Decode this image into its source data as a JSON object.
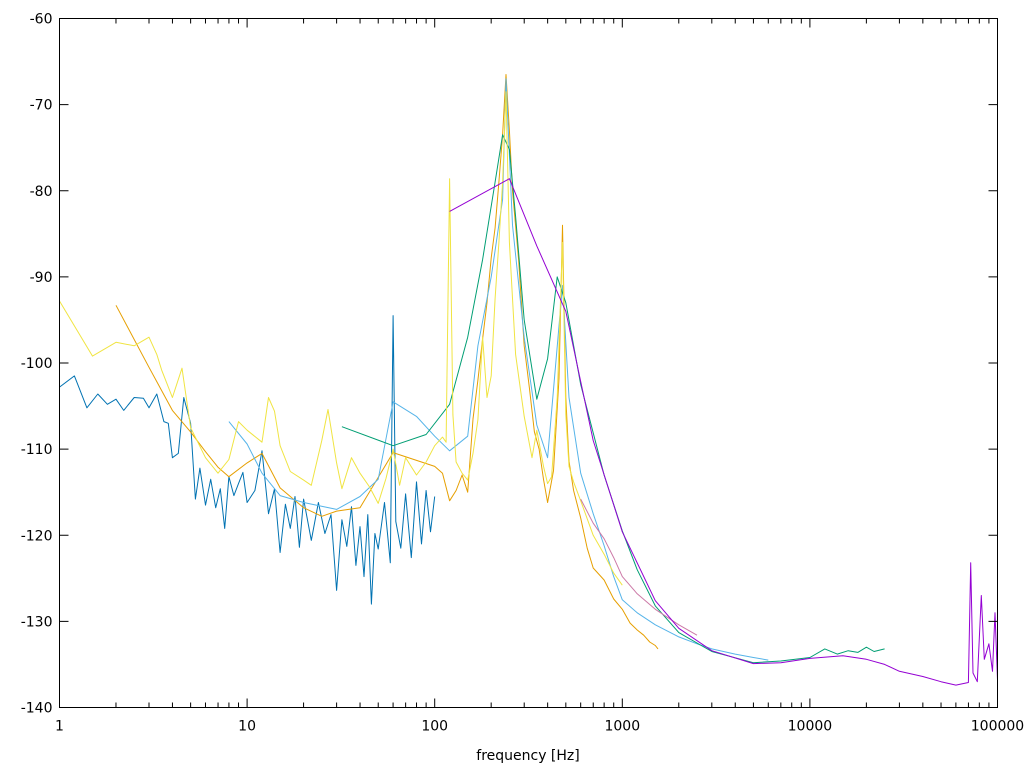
{
  "chart_data": {
    "type": "line",
    "title": "",
    "xlabel": "frequency [Hz]",
    "ylabel": "",
    "x_scale": "log",
    "xlim": [
      1,
      100000
    ],
    "ylim": [
      -140,
      -60
    ],
    "grid": false,
    "legend": "none",
    "x_ticks": [
      {
        "value": 1,
        "label": "1"
      },
      {
        "value": 10,
        "label": "10"
      },
      {
        "value": 100,
        "label": "100"
      },
      {
        "value": 1000,
        "label": "1000"
      },
      {
        "value": 10000,
        "label": "10000"
      },
      {
        "value": 100000,
        "label": "100000"
      }
    ],
    "y_ticks": [
      {
        "value": -60,
        "label": "-60"
      },
      {
        "value": -70,
        "label": "-70"
      },
      {
        "value": -80,
        "label": "-80"
      },
      {
        "value": -90,
        "label": "-90"
      },
      {
        "value": -100,
        "label": "-100"
      },
      {
        "value": -110,
        "label": "-110"
      },
      {
        "value": -120,
        "label": "-120"
      },
      {
        "value": -130,
        "label": "-130"
      },
      {
        "value": -140,
        "label": "-140"
      }
    ],
    "series": [
      {
        "color": "#0072b2",
        "points": [
          [
            1,
            -102.8
          ],
          [
            1.2,
            -101.5
          ],
          [
            1.4,
            -105.2
          ],
          [
            1.6,
            -103.6
          ],
          [
            1.8,
            -104.8
          ],
          [
            2,
            -104.2
          ],
          [
            2.2,
            -105.5
          ],
          [
            2.5,
            -104
          ],
          [
            2.8,
            -104.1
          ],
          [
            3,
            -105.2
          ],
          [
            3.3,
            -103.6
          ],
          [
            3.6,
            -106.8
          ],
          [
            3.8,
            -107
          ],
          [
            4,
            -111
          ],
          [
            4.3,
            -110.5
          ],
          [
            4.6,
            -104
          ],
          [
            5,
            -107
          ],
          [
            5.3,
            -115.8
          ],
          [
            5.6,
            -112.2
          ],
          [
            6,
            -116.5
          ],
          [
            6.4,
            -113.5
          ],
          [
            6.8,
            -116.8
          ],
          [
            7.2,
            -114.6
          ],
          [
            7.6,
            -119.2
          ],
          [
            8,
            -113.2
          ],
          [
            8.5,
            -115.4
          ],
          [
            9,
            -114
          ],
          [
            9.5,
            -112.7
          ],
          [
            10,
            -116.2
          ],
          [
            11,
            -114.8
          ],
          [
            12,
            -110.2
          ],
          [
            13,
            -117.5
          ],
          [
            14,
            -114.6
          ],
          [
            15,
            -122
          ],
          [
            16,
            -116.4
          ],
          [
            17,
            -119.2
          ],
          [
            18,
            -115.5
          ],
          [
            19,
            -121.4
          ],
          [
            20,
            -115.8
          ],
          [
            22,
            -120.6
          ],
          [
            24,
            -116.2
          ],
          [
            26,
            -119.8
          ],
          [
            28,
            -117.6
          ],
          [
            30,
            -126.4
          ],
          [
            32,
            -118.2
          ],
          [
            34,
            -121.3
          ],
          [
            36,
            -116.7
          ],
          [
            38,
            -123.5
          ],
          [
            40,
            -119
          ],
          [
            42,
            -124.8
          ],
          [
            44,
            -117.6
          ],
          [
            46,
            -128
          ],
          [
            48,
            -119.8
          ],
          [
            50,
            -121.6
          ],
          [
            54,
            -116.2
          ],
          [
            58,
            -123.2
          ],
          [
            60,
            -94.5
          ],
          [
            62,
            -118.4
          ],
          [
            66,
            -121.5
          ],
          [
            70,
            -115.2
          ],
          [
            75,
            -122.6
          ],
          [
            80,
            -113.8
          ],
          [
            85,
            -121
          ],
          [
            90,
            -114.8
          ],
          [
            95,
            -119.6
          ],
          [
            100,
            -115.5
          ]
        ]
      },
      {
        "color": "#e69f00",
        "points": [
          [
            2,
            -93.3
          ],
          [
            3,
            -100.5
          ],
          [
            4,
            -105.5
          ],
          [
            5,
            -108
          ],
          [
            6,
            -110.3
          ],
          [
            7,
            -112.1
          ],
          [
            8,
            -113.2
          ],
          [
            10,
            -111.6
          ],
          [
            12,
            -110.5
          ],
          [
            15,
            -114.5
          ],
          [
            20,
            -116.8
          ],
          [
            25,
            -117.8
          ],
          [
            30,
            -117.2
          ],
          [
            40,
            -116.8
          ],
          [
            60,
            -110.4
          ],
          [
            100,
            -112
          ],
          [
            110,
            -112.8
          ],
          [
            120,
            -116
          ],
          [
            130,
            -114.8
          ],
          [
            140,
            -113
          ],
          [
            150,
            -115
          ],
          [
            160,
            -106.5
          ],
          [
            170,
            -102
          ],
          [
            180,
            -97.2
          ],
          [
            190,
            -93
          ],
          [
            200,
            -87.8
          ],
          [
            210,
            -84.3
          ],
          [
            220,
            -79
          ],
          [
            230,
            -73.5
          ],
          [
            240,
            -66.5
          ],
          [
            250,
            -73
          ],
          [
            260,
            -80
          ],
          [
            280,
            -88
          ],
          [
            300,
            -98
          ],
          [
            320,
            -103
          ],
          [
            340,
            -108
          ],
          [
            360,
            -110
          ],
          [
            380,
            -113.5
          ],
          [
            400,
            -116.2
          ],
          [
            430,
            -112.5
          ],
          [
            460,
            -101.8
          ],
          [
            480,
            -84
          ],
          [
            500,
            -104
          ],
          [
            520,
            -111.4
          ],
          [
            550,
            -114.8
          ],
          [
            600,
            -118
          ],
          [
            650,
            -121.5
          ],
          [
            700,
            -123.8
          ],
          [
            800,
            -125.2
          ],
          [
            900,
            -127.4
          ],
          [
            1000,
            -128.6
          ],
          [
            1100,
            -130.2
          ],
          [
            1200,
            -131
          ],
          [
            1300,
            -131.6
          ],
          [
            1400,
            -132.4
          ],
          [
            1500,
            -132.8
          ],
          [
            1550,
            -133.2
          ]
        ]
      },
      {
        "color": "#56b4e9",
        "points": [
          [
            8,
            -106.8
          ],
          [
            10,
            -109.4
          ],
          [
            12,
            -112.8
          ],
          [
            15,
            -115.4
          ],
          [
            20,
            -116.2
          ],
          [
            30,
            -117
          ],
          [
            40,
            -115.5
          ],
          [
            50,
            -113.5
          ],
          [
            60,
            -104.5
          ],
          [
            80,
            -106.2
          ],
          [
            100,
            -108.5
          ],
          [
            120,
            -110.2
          ],
          [
            150,
            -108.5
          ],
          [
            170,
            -98
          ],
          [
            200,
            -90
          ],
          [
            230,
            -81
          ],
          [
            240,
            -67
          ],
          [
            260,
            -84
          ],
          [
            300,
            -97
          ],
          [
            350,
            -107.2
          ],
          [
            400,
            -111
          ],
          [
            480,
            -91
          ],
          [
            520,
            -104
          ],
          [
            600,
            -112.8
          ],
          [
            700,
            -117.5
          ],
          [
            800,
            -121.2
          ],
          [
            900,
            -124.8
          ],
          [
            1000,
            -127.5
          ],
          [
            1200,
            -129
          ],
          [
            1500,
            -130.4
          ],
          [
            2000,
            -131.8
          ],
          [
            2500,
            -132.6
          ],
          [
            3000,
            -133.2
          ],
          [
            4000,
            -133.8
          ],
          [
            5000,
            -134.2
          ],
          [
            6000,
            -134.5
          ]
        ]
      },
      {
        "color": "#009e73",
        "points": [
          [
            32,
            -107.4
          ],
          [
            60,
            -109.6
          ],
          [
            90,
            -108.3
          ],
          [
            120,
            -104.8
          ],
          [
            150,
            -97
          ],
          [
            180,
            -88
          ],
          [
            210,
            -79
          ],
          [
            230,
            -73.5
          ],
          [
            250,
            -75.2
          ],
          [
            270,
            -83
          ],
          [
            300,
            -95
          ],
          [
            350,
            -104.2
          ],
          [
            400,
            -99.5
          ],
          [
            450,
            -90
          ],
          [
            500,
            -93
          ],
          [
            600,
            -102.5
          ],
          [
            800,
            -113
          ],
          [
            1000,
            -119.5
          ],
          [
            1200,
            -124
          ],
          [
            1500,
            -128.2
          ],
          [
            2000,
            -131.3
          ],
          [
            3000,
            -133.5
          ],
          [
            5000,
            -134.8
          ],
          [
            7000,
            -134.6
          ],
          [
            10000,
            -134.2
          ],
          [
            12000,
            -133.2
          ],
          [
            14000,
            -133.8
          ],
          [
            16000,
            -133.4
          ],
          [
            18000,
            -133.6
          ],
          [
            20000,
            -133
          ],
          [
            22000,
            -133.5
          ],
          [
            25000,
            -133.2
          ]
        ]
      },
      {
        "color": "#f0e442",
        "points": [
          [
            1,
            -92.8
          ],
          [
            1.5,
            -99.2
          ],
          [
            2,
            -97.6
          ],
          [
            2.5,
            -98
          ],
          [
            3,
            -97
          ],
          [
            3.3,
            -99
          ],
          [
            3.5,
            -100.8
          ],
          [
            4,
            -104
          ],
          [
            4.5,
            -100.6
          ],
          [
            5,
            -107.5
          ],
          [
            6,
            -111
          ],
          [
            7,
            -112.8
          ],
          [
            8,
            -111.2
          ],
          [
            9,
            -106.8
          ],
          [
            10,
            -107.8
          ],
          [
            12,
            -109.2
          ],
          [
            13,
            -104
          ],
          [
            14,
            -105.6
          ],
          [
            15,
            -109.6
          ],
          [
            17,
            -112.6
          ],
          [
            20,
            -113.6
          ],
          [
            22,
            -114.2
          ],
          [
            25,
            -109
          ],
          [
            27,
            -105.4
          ],
          [
            30,
            -111.6
          ],
          [
            32,
            -114.6
          ],
          [
            36,
            -111
          ],
          [
            40,
            -112.8
          ],
          [
            45,
            -114.4
          ],
          [
            50,
            -116.3
          ],
          [
            55,
            -113.4
          ],
          [
            60,
            -110
          ],
          [
            65,
            -114.2
          ],
          [
            70,
            -111
          ],
          [
            80,
            -113
          ],
          [
            90,
            -111.5
          ],
          [
            100,
            -109.6
          ],
          [
            110,
            -108.6
          ],
          [
            115,
            -109.2
          ],
          [
            120,
            -78.6
          ],
          [
            125,
            -106
          ],
          [
            130,
            -111.5
          ],
          [
            140,
            -112.8
          ],
          [
            150,
            -113.6
          ],
          [
            160,
            -110.5
          ],
          [
            170,
            -106.6
          ],
          [
            180,
            -97
          ],
          [
            190,
            -104
          ],
          [
            200,
            -101.5
          ],
          [
            210,
            -92.5
          ],
          [
            220,
            -86
          ],
          [
            230,
            -79
          ],
          [
            240,
            -68.5
          ],
          [
            250,
            -86
          ],
          [
            270,
            -99
          ],
          [
            300,
            -106.2
          ],
          [
            330,
            -111
          ],
          [
            350,
            -107.8
          ],
          [
            380,
            -112
          ],
          [
            400,
            -114
          ],
          [
            420,
            -113.2
          ],
          [
            450,
            -104
          ],
          [
            480,
            -86
          ],
          [
            500,
            -106
          ],
          [
            520,
            -112
          ],
          [
            550,
            -113.8
          ],
          [
            600,
            -116
          ],
          [
            700,
            -120
          ],
          [
            800,
            -122.2
          ],
          [
            900,
            -124.4
          ],
          [
            1000,
            -125.8
          ]
        ]
      },
      {
        "color": "#cc79a7",
        "points": [
          [
            600,
            -115.8
          ],
          [
            700,
            -118.6
          ],
          [
            800,
            -120.4
          ],
          [
            900,
            -122.6
          ],
          [
            1000,
            -124.8
          ],
          [
            1200,
            -126.8
          ],
          [
            1500,
            -128.6
          ],
          [
            2000,
            -130.4
          ],
          [
            2500,
            -131.6
          ]
        ]
      },
      {
        "color": "#9400d3",
        "points": [
          [
            120,
            -82.4
          ],
          [
            250,
            -78.6
          ],
          [
            350,
            -86.4
          ],
          [
            500,
            -94
          ],
          [
            700,
            -109
          ],
          [
            1000,
            -119.6
          ],
          [
            1500,
            -127.6
          ],
          [
            2000,
            -130.8
          ],
          [
            3000,
            -133.4
          ],
          [
            5000,
            -134.9
          ],
          [
            7000,
            -134.8
          ],
          [
            10000,
            -134.3
          ],
          [
            15000,
            -134
          ],
          [
            20000,
            -134.4
          ],
          [
            25000,
            -135
          ],
          [
            30000,
            -135.8
          ],
          [
            40000,
            -136.4
          ],
          [
            50000,
            -137
          ],
          [
            60000,
            -137.4
          ],
          [
            70000,
            -137.1
          ],
          [
            72000,
            -123.2
          ],
          [
            74000,
            -136
          ],
          [
            78000,
            -137
          ],
          [
            82000,
            -127
          ],
          [
            85000,
            -134.4
          ],
          [
            90000,
            -132.6
          ],
          [
            94000,
            -135.8
          ],
          [
            97000,
            -129
          ],
          [
            100000,
            -136.8
          ]
        ]
      }
    ]
  }
}
